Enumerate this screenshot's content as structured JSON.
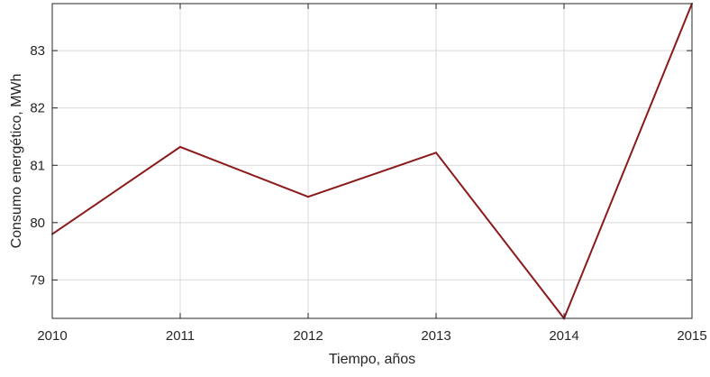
{
  "chart_data": {
    "type": "line",
    "title": "",
    "xlabel": "Tiempo, años",
    "ylabel": "Consumo energético, MWh",
    "x": [
      2010,
      2011,
      2012,
      2013,
      2014,
      2015
    ],
    "series": [
      {
        "values": [
          79.8,
          81.32,
          80.45,
          81.22,
          78.33,
          83.82
        ],
        "color": "#8b1a1a"
      }
    ],
    "xlim": [
      2010,
      2015
    ],
    "ylim": [
      78.33,
      83.82
    ],
    "xticks": [
      2010,
      2011,
      2012,
      2013,
      2014,
      2015
    ],
    "yticks": [
      79,
      80,
      81,
      82,
      83
    ],
    "grid": true,
    "legend": "none"
  }
}
